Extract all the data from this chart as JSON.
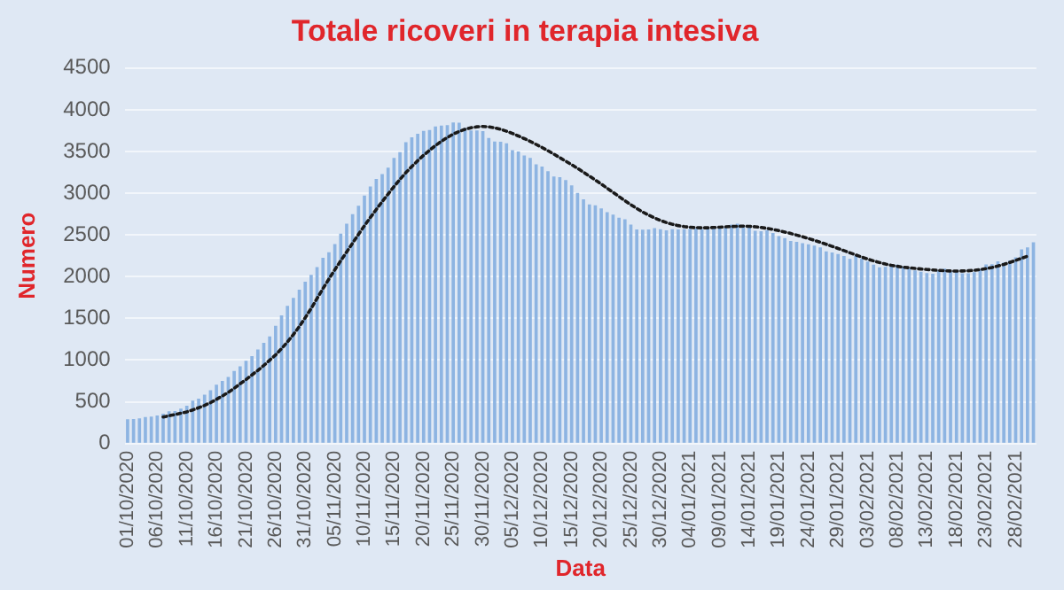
{
  "chart_data": {
    "type": "bar",
    "title": "Totale ricoveri in terapia intesiva",
    "xlabel": "Data",
    "ylabel": "Numero",
    "categories": [
      "01/10/2020",
      null,
      null,
      null,
      null,
      "06/10/2020",
      null,
      null,
      null,
      null,
      "11/10/2020",
      null,
      null,
      null,
      null,
      "16/10/2020",
      null,
      null,
      null,
      null,
      "21/10/2020",
      null,
      null,
      null,
      null,
      "26/10/2020",
      null,
      null,
      null,
      null,
      "31/10/2020",
      null,
      null,
      null,
      null,
      "05/11/2020",
      null,
      null,
      null,
      null,
      "10/11/2020",
      null,
      null,
      null,
      null,
      "15/11/2020",
      null,
      null,
      null,
      null,
      "20/11/2020",
      null,
      null,
      null,
      null,
      "25/11/2020",
      null,
      null,
      null,
      null,
      "30/11/2020",
      null,
      null,
      null,
      null,
      "05/12/2020",
      null,
      null,
      null,
      null,
      "10/12/2020",
      null,
      null,
      null,
      null,
      "15/12/2020",
      null,
      null,
      null,
      null,
      "20/12/2020",
      null,
      null,
      null,
      null,
      "25/12/2020",
      null,
      null,
      null,
      null,
      "30/12/2020",
      null,
      null,
      null,
      null,
      "04/01/2021",
      null,
      null,
      null,
      null,
      "09/01/2021",
      null,
      null,
      null,
      null,
      "14/01/2021",
      null,
      null,
      null,
      null,
      "19/01/2021",
      null,
      null,
      null,
      null,
      "24/01/2021",
      null,
      null,
      null,
      null,
      "29/01/2021",
      null,
      null,
      null,
      null,
      "03/02/2021",
      null,
      null,
      null,
      null,
      "08/02/2021",
      null,
      null,
      null,
      null,
      "13/02/2021",
      null,
      null,
      null,
      null,
      "18/02/2021",
      null,
      null,
      null,
      null,
      "23/02/2021",
      null,
      null,
      null,
      null,
      "28/02/2021",
      null,
      null,
      null
    ],
    "series": [
      {
        "color": "#8db4e2",
        "values": [
          291,
          294,
          303,
          319,
          323,
          337,
          358,
          387,
          390,
          420,
          452,
          514,
          539,
          586,
          638,
          705,
          750,
          797,
          870,
          926,
          992,
          1049,
          1128,
          1208,
          1284,
          1411,
          1536,
          1651,
          1746,
          1843,
          1939,
          2022,
          2114,
          2225,
          2292,
          2391,
          2515,
          2634,
          2749,
          2849,
          2971,
          3081,
          3170,
          3230,
          3306,
          3422,
          3492,
          3612,
          3670,
          3712,
          3748,
          3758,
          3801,
          3810,
          3816,
          3848,
          3846,
          3782,
          3753,
          3753,
          3744,
          3663,
          3619,
          3616,
          3597,
          3517,
          3501,
          3452,
          3422,
          3345,
          3320,
          3265,
          3199,
          3192,
          3158,
          3095,
          3003,
          2926,
          2867,
          2855,
          2819,
          2772,
          2743,
          2706,
          2687,
          2624,
          2566,
          2563,
          2565,
          2583,
          2569,
          2555,
          2569,
          2566,
          2569,
          2571,
          2579,
          2569,
          2587,
          2587,
          2588,
          2587,
          2623,
          2636,
          2589,
          2587,
          2549,
          2545,
          2557,
          2522,
          2487,
          2461,
          2428,
          2418,
          2400,
          2388,
          2372,
          2352,
          2302,
          2290,
          2270,
          2246,
          2214,
          2252,
          2215,
          2180,
          2143,
          2111,
          2116,
          2128,
          2145,
          2120,
          2095,
          2074,
          2059,
          2044,
          2035,
          2074,
          2097,
          2063,
          2070,
          2040,
          2041,
          2054,
          2094,
          2146,
          2150,
          2184,
          2168,
          2194,
          2231,
          2327,
          2351,
          2411
        ]
      },
      {
        "type": "line",
        "color": "#1a1a1a",
        "line_style": "dotted",
        "marker": "none",
        "values": [
          null,
          null,
          null,
          null,
          null,
          null,
          318,
          333,
          347,
          364,
          380,
          403,
          429,
          457,
          490,
          530,
          570,
          614,
          662,
          716,
          766,
          822,
          877,
          936,
          999,
          1063,
          1137,
          1218,
          1306,
          1403,
          1508,
          1619,
          1739,
          1857,
          1972,
          2083,
          2191,
          2296,
          2402,
          2507,
          2610,
          2709,
          2805,
          2899,
          2990,
          3080,
          3165,
          3247,
          3320,
          3390,
          3455,
          3515,
          3571,
          3622,
          3668,
          3708,
          3740,
          3766,
          3785,
          3796,
          3800,
          3796,
          3784,
          3766,
          3743,
          3716,
          3686,
          3654,
          3620,
          3585,
          3548,
          3509,
          3468,
          3426,
          3384,
          3342,
          3298,
          3252,
          3205,
          3158,
          3110,
          3060,
          3010,
          2960,
          2910,
          2862,
          2817,
          2775,
          2737,
          2703,
          2673,
          2648,
          2628,
          2612,
          2600,
          2592,
          2587,
          2585,
          2586,
          2589,
          2593,
          2597,
          2601,
          2604,
          2605,
          2603,
          2598,
          2590,
          2579,
          2566,
          2551,
          2535,
          2517,
          2498,
          2478,
          2457,
          2435,
          2412,
          2388,
          2363,
          2338,
          2312,
          2286,
          2260,
          2235,
          2211,
          2189,
          2169,
          2151,
          2136,
          2124,
          2114,
          2106,
          2099,
          2092,
          2086,
          2080,
          2075,
          2071,
          2068,
          2067,
          2068,
          2071,
          2077,
          2085,
          2096,
          2110,
          2127,
          2147,
          2170,
          2195,
          2220,
          2245,
          null
        ]
      }
    ],
    "ylim": [
      0,
      4500
    ],
    "yticks": [
      0,
      500,
      1000,
      1500,
      2000,
      2500,
      3000,
      3500,
      4000,
      4500
    ],
    "grid": "y",
    "legend": false
  }
}
